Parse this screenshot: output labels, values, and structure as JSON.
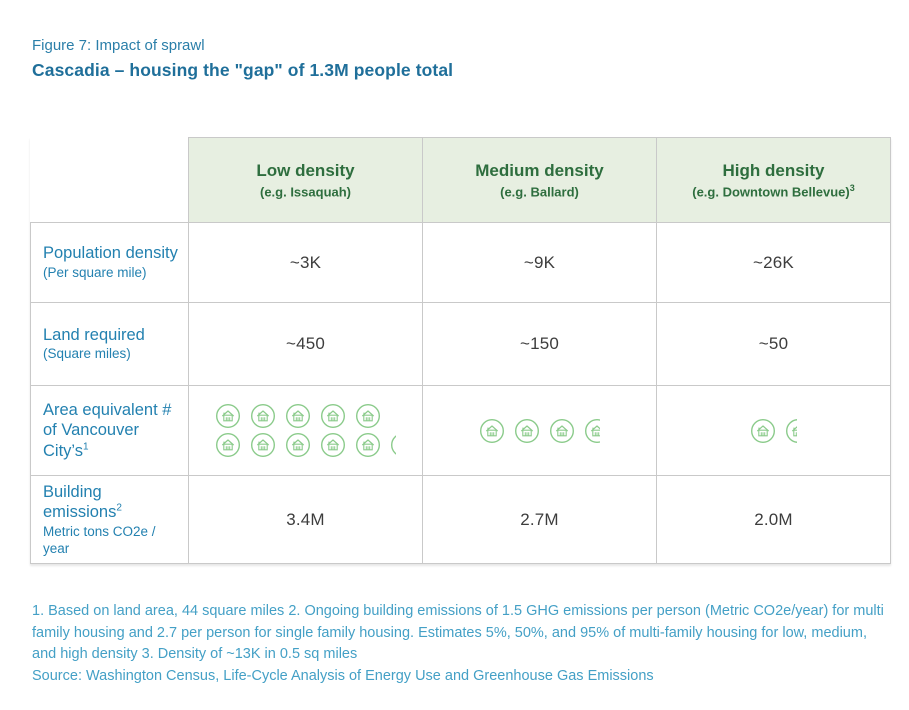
{
  "page": {
    "figure_label": "Figure 7: Impact of sprawl",
    "title": "Cascadia – housing the \"gap\" of 1.3M people total"
  },
  "table": {
    "columns": [
      {
        "title": "Low density",
        "subtitle": "(e.g. Issaquah)",
        "superscript": ""
      },
      {
        "title": "Medium density",
        "subtitle": "(e.g. Ballard)",
        "superscript": ""
      },
      {
        "title": "High density",
        "subtitle": "(e.g. Downtown Bellevue)",
        "superscript": "3"
      }
    ],
    "rows": [
      {
        "label": "Population density",
        "sublabel": "(Per square mile)",
        "superscript": "",
        "values": [
          "~3K",
          "~9K",
          "~26K"
        ]
      },
      {
        "label": "Land required",
        "sublabel": "(Square miles)",
        "superscript": "",
        "values": [
          "~450",
          "~150",
          "~50"
        ]
      },
      {
        "label": "Area equivalent #",
        "sublabel": "of Vancouver City’s",
        "superscript": "1",
        "values": [
          "",
          "",
          ""
        ]
      },
      {
        "label": "Building emissions",
        "sublabel": "Metric tons CO2e / year",
        "superscript": "2",
        "values": [
          "3.4M",
          "2.7M",
          "2.0M"
        ]
      }
    ],
    "icon_row": {
      "icon_name": "house-icon",
      "cells": [
        {
          "rows": [
            {
              "full": 5,
              "partial": 0
            },
            {
              "full": 5,
              "partial": 0.24
            }
          ]
        },
        {
          "rows": [
            {
              "full": 3,
              "partial": 0.62
            }
          ]
        },
        {
          "rows": [
            {
              "full": 1,
              "partial": 0.45
            }
          ]
        }
      ]
    }
  },
  "footnotes": {
    "notes": "1. Based on land area, 44 square miles  2. Ongoing building emissions of 1.5 GHG emissions per person (Metric CO2e/year) for multi family housing and 2.7 per person for single family housing.  Estimates 5%, 50%, and 95% of multi-family housing for low, medium, and high density  3. Density of ~13K in 0.5 sq miles",
    "source": "Source: Washington Census, Life-Cycle Analysis of Energy Use and Greenhouse Gas Emissions"
  },
  "colors": {
    "figure_label_blue": "#2b7fa9",
    "title_blue": "#1f6f9a",
    "row_label_blue": "#2381b0",
    "footnote_blue": "#44a0c6",
    "header_background_green": "#e7efe1",
    "header_text_green": "#2e6e3e",
    "icon_green": "#8bcb8b",
    "value_gray": "#3d3d3d",
    "border_gray": "#c9c9c9"
  },
  "chart_data": {
    "type": "table",
    "title": "Cascadia – housing the \"gap\" of 1.3M people total",
    "categories": [
      "Low density (e.g. Issaquah)",
      "Medium density (e.g. Ballard)",
      "High density (e.g. Downtown Bellevue)"
    ],
    "series": [
      {
        "name": "Population density (Per square mile)",
        "values": [
          "~3K",
          "~9K",
          "~26K"
        ]
      },
      {
        "name": "Land required (Square miles)",
        "values": [
          "~450",
          "~150",
          "~50"
        ]
      },
      {
        "name": "Area equivalent # of Vancouver City's (icon count)",
        "values": [
          10.24,
          3.62,
          1.45
        ]
      },
      {
        "name": "Building emissions (Metric tons CO2e / year)",
        "values": [
          "3.4M",
          "2.7M",
          "2.0M"
        ]
      }
    ]
  }
}
